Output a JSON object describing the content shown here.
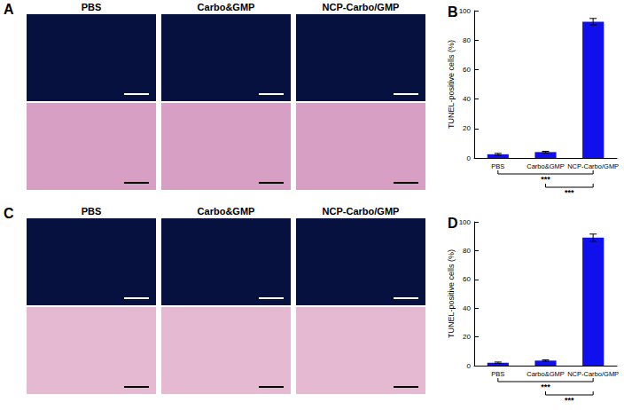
{
  "panels": [
    {
      "label": "A",
      "columns": [
        "PBS",
        "Carbo&GMP",
        "NCP-Carbo/GMP"
      ]
    },
    {
      "label": "C",
      "columns": [
        "PBS",
        "Carbo&GMP",
        "NCP-Carbo/GMP"
      ]
    }
  ],
  "chart_data": [
    {
      "type": "bar",
      "title": "B",
      "categories": [
        "PBS",
        "Carbo&GMP",
        "NCP-Carbo/GMP"
      ],
      "values": [
        2.5,
        4,
        92.5
      ],
      "errors": [
        0.6,
        0.5,
        2.2
      ],
      "color": "#1010ee",
      "ylabel": "TUNEL-positive cells (%)",
      "ylim": [
        0,
        100
      ],
      "yticks": [
        0,
        20,
        40,
        60,
        80,
        100
      ],
      "grid": false,
      "annotations": [
        {
          "text": "***",
          "from": "PBS",
          "to": "NCP-Carbo/GMP"
        },
        {
          "text": "***",
          "from": "Carbo&GMP",
          "to": "NCP-Carbo/GMP"
        }
      ]
    },
    {
      "type": "bar",
      "title": "D",
      "categories": [
        "PBS",
        "Carbo&GMP",
        "NCP-Carbo/GMP"
      ],
      "values": [
        2,
        3.5,
        89
      ],
      "errors": [
        0.5,
        0.5,
        2.5
      ],
      "color": "#1010ee",
      "ylabel": "TUNEL-positive cells (%)",
      "ylim": [
        0,
        100
      ],
      "yticks": [
        0,
        20,
        40,
        60,
        80,
        100
      ],
      "grid": false,
      "annotations": [
        {
          "text": "***",
          "from": "PBS",
          "to": "NCP-Carbo/GMP"
        },
        {
          "text": "***",
          "from": "Carbo&GMP",
          "to": "NCP-Carbo/GMP"
        }
      ]
    }
  ]
}
